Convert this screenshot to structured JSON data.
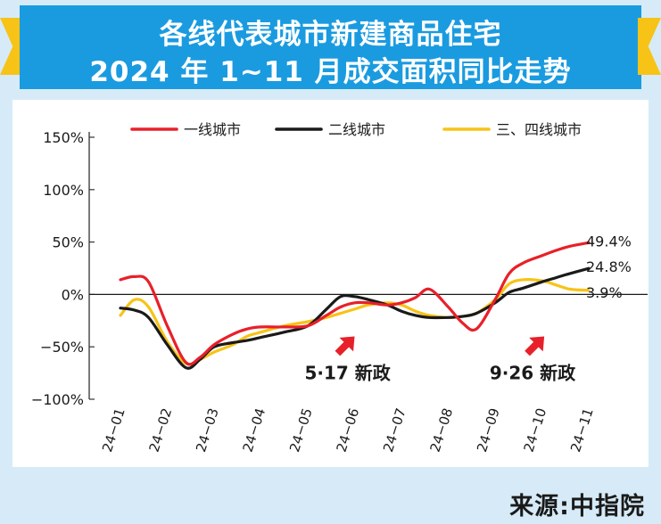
{
  "banner": {
    "title_line1": "各线代表城市新建商品住宅",
    "title_line2": "2024 年 1~11 月成交面积同比走势"
  },
  "source": "来源:中指院",
  "colors": {
    "banner": "#1a9be0",
    "accent": "#f7c316",
    "tier1": "#e8202a",
    "tier2": "#1a1a1a",
    "tier3": "#f7c316",
    "arrow": "#e8202a"
  },
  "chart_data": {
    "type": "line",
    "title": "各线代表城市新建商品住宅 2024 年 1~11 月成交面积同比走势",
    "ylim": [
      -100,
      150
    ],
    "yticks": [
      150,
      100,
      50,
      0,
      -50,
      -100
    ],
    "ytick_labels": [
      "150%",
      "100%",
      "50%",
      "0%",
      "−50%",
      "−100%"
    ],
    "x_labels": [
      "24−01",
      "24−02",
      "24−03",
      "24−04",
      "24−05",
      "24−06",
      "24−07",
      "24−08",
      "24−09",
      "24−10",
      "24−11"
    ],
    "x": [
      0,
      0.3,
      0.6,
      1,
      1.4,
      1.7,
      2,
      2.4,
      2.7,
      3,
      3.5,
      4,
      4.4,
      4.7,
      5,
      5.3,
      5.7,
      6,
      6.3,
      6.6,
      7,
      7.3,
      7.6,
      8,
      8.3,
      8.6,
      9,
      9.3,
      9.6,
      10
    ],
    "series": [
      {
        "name": "一线城市",
        "color": "#e8202a",
        "end_label": "49.4%",
        "values": [
          14,
          17,
          12,
          -30,
          -65,
          -60,
          -48,
          -38,
          -33,
          -31,
          -31,
          -30,
          -20,
          -12,
          -8,
          -8,
          -10,
          -8,
          -3,
          5,
          -12,
          -27,
          -33,
          -5,
          20,
          30,
          37,
          42,
          46,
          49.4
        ]
      },
      {
        "name": "二线城市",
        "color": "#1a1a1a",
        "end_label": "24.8%",
        "values": [
          -13,
          -15,
          -22,
          -48,
          -70,
          -62,
          -50,
          -46,
          -44,
          -41,
          -36,
          -30,
          -14,
          -2,
          -2,
          -5,
          -10,
          -16,
          -20,
          -22,
          -22,
          -21,
          -18,
          -8,
          2,
          6,
          12,
          16,
          20,
          24.8
        ]
      },
      {
        "name": "三、四线城市",
        "color": "#f7c316",
        "end_label": "3.9%",
        "values": [
          -20,
          -5,
          -12,
          -45,
          -66,
          -62,
          -55,
          -48,
          -40,
          -36,
          -30,
          -26,
          -22,
          -18,
          -14,
          -10,
          -8,
          -10,
          -16,
          -20,
          -22,
          -21,
          -18,
          -5,
          10,
          14,
          13,
          9,
          5,
          3.9
        ]
      }
    ],
    "annotations": [
      {
        "text": "5·17 新政",
        "x": 4.85,
        "y": -81,
        "arrow_tip": [
          5.0,
          -40
        ]
      },
      {
        "text": "9·26 新政",
        "x": 8.8,
        "y": -81,
        "arrow_tip": [
          9.05,
          -40
        ]
      }
    ],
    "legend": "top"
  }
}
